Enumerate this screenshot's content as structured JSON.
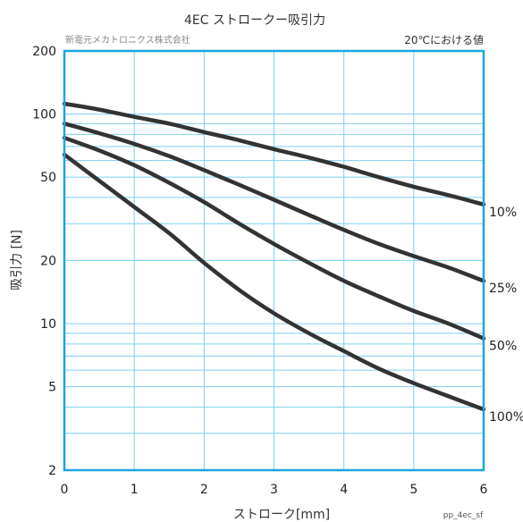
{
  "chart_data": {
    "type": "line",
    "title": "4EC ストロークー吸引力",
    "maker": "新電元メカトロニクス株式会社",
    "condition": "20℃における値",
    "xlabel": "ストローク[mm]",
    "ylabel": "吸引力 [N]",
    "code": "pp_4ec_sf",
    "xlim": [
      0,
      6
    ],
    "ylim": [
      2,
      200
    ],
    "yscale": "log",
    "x_ticks": [
      "0",
      "1",
      "2",
      "3",
      "4",
      "5",
      "6"
    ],
    "y_ticks": [
      {
        "value": 2,
        "label": "2"
      },
      {
        "value": 5,
        "label": "5"
      },
      {
        "value": 10,
        "label": "10"
      },
      {
        "value": 20,
        "label": "20"
      },
      {
        "value": 50,
        "label": "50"
      },
      {
        "value": 100,
        "label": "100"
      },
      {
        "value": 200,
        "label": "200"
      }
    ],
    "y_grid": [
      3,
      4,
      5,
      6,
      7,
      8,
      9,
      10,
      20,
      30,
      40,
      50,
      60,
      70,
      80,
      90,
      100
    ],
    "grid": true,
    "line_color": "#333333",
    "grid_color": "#7fd0ee",
    "frame_color": "#1aa6dd",
    "x": [
      0,
      0.5,
      1,
      1.5,
      2,
      2.5,
      3,
      3.5,
      4,
      4.5,
      5,
      5.5,
      6
    ],
    "series": [
      {
        "name": "10%",
        "values": [
          112,
          105,
          97,
          90,
          82,
          75,
          68,
          62,
          56,
          50,
          45,
          41,
          37
        ]
      },
      {
        "name": "25%",
        "values": [
          90,
          81,
          72,
          63,
          54,
          46,
          39,
          33,
          28,
          24,
          21,
          18.5,
          16
        ]
      },
      {
        "name": "50%",
        "values": [
          77,
          67,
          57,
          47,
          38,
          30,
          24,
          19.5,
          16,
          13.5,
          11.5,
          10,
          8.5
        ]
      },
      {
        "name": "100%",
        "values": [
          64,
          48,
          36,
          27,
          19.5,
          14.5,
          11.2,
          9,
          7.4,
          6.1,
          5.2,
          4.5,
          3.9
        ]
      }
    ]
  }
}
